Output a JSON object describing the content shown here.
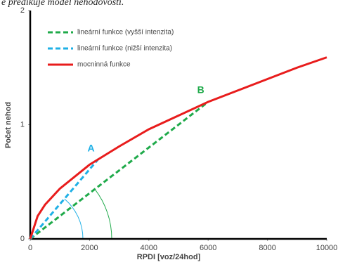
{
  "chart_data": {
    "type": "line",
    "title": "e predikuje model nehodovosti.",
    "xlabel": "RPDI [voz/24hod]",
    "ylabel": "Počet nehod",
    "xlim": [
      0,
      10000
    ],
    "xticks": [
      0,
      2000,
      4000,
      6000,
      8000,
      10000
    ],
    "ylim": [
      0,
      2
    ],
    "yticks": [
      0,
      1,
      2
    ],
    "series": [
      {
        "name": "lineární funkce (vyšší intenzita)",
        "color": "#1faa4a",
        "dash": true,
        "x": [
          0,
          6000
        ],
        "values": [
          0,
          1.2
        ]
      },
      {
        "name": "lineární funkce (nižší intenzita)",
        "color": "#1fb0e6",
        "dash": true,
        "x": [
          0,
          2300
        ],
        "values": [
          0,
          0.7
        ]
      },
      {
        "name": "mocninná funkce",
        "color": "#e81c1c",
        "dash": false,
        "x": [
          0,
          250,
          500,
          1000,
          2000,
          3000,
          4000,
          5000,
          6000,
          7000,
          8000,
          9000,
          10000
        ],
        "values": [
          0,
          0.2,
          0.3,
          0.44,
          0.65,
          0.81,
          0.96,
          1.08,
          1.2,
          1.3,
          1.4,
          1.5,
          1.59
        ]
      }
    ],
    "annotations": [
      {
        "text": "A",
        "x": 2050,
        "y": 0.79,
        "color": "#1fb0e6"
      },
      {
        "text": "B",
        "x": 5750,
        "y": 1.3,
        "color": "#1faa4a"
      }
    ]
  }
}
